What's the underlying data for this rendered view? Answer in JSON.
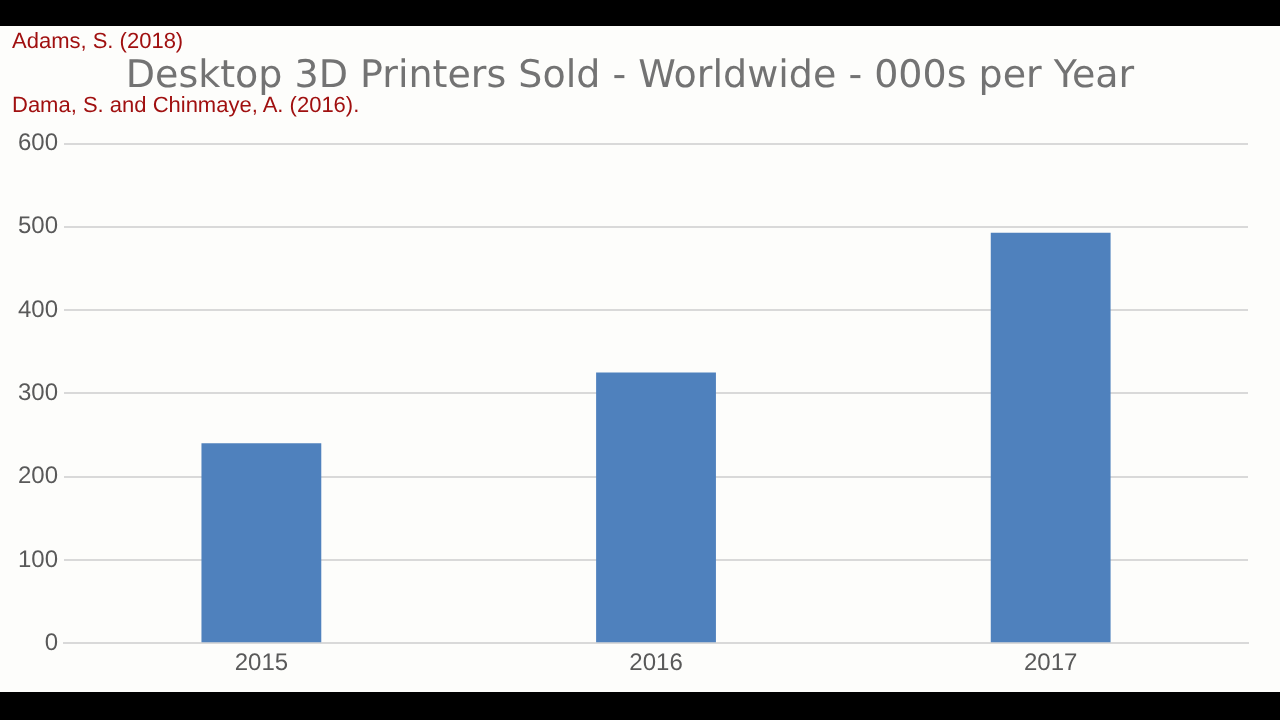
{
  "chart_data": {
    "type": "bar",
    "title": "Desktop 3D Printers Sold - Worldwide - 000s per Year",
    "categories": [
      "2015",
      "2016",
      "2017"
    ],
    "values": [
      240,
      325,
      493
    ],
    "color": "#4f81bd",
    "ylim": [
      0,
      600
    ],
    "yticks": [
      0,
      100,
      200,
      300,
      400,
      500,
      600
    ],
    "grid": "y",
    "annotations": [
      "Adams, S. (2018)",
      "Dama, S. and Chinmaye, A. (2016)."
    ]
  }
}
